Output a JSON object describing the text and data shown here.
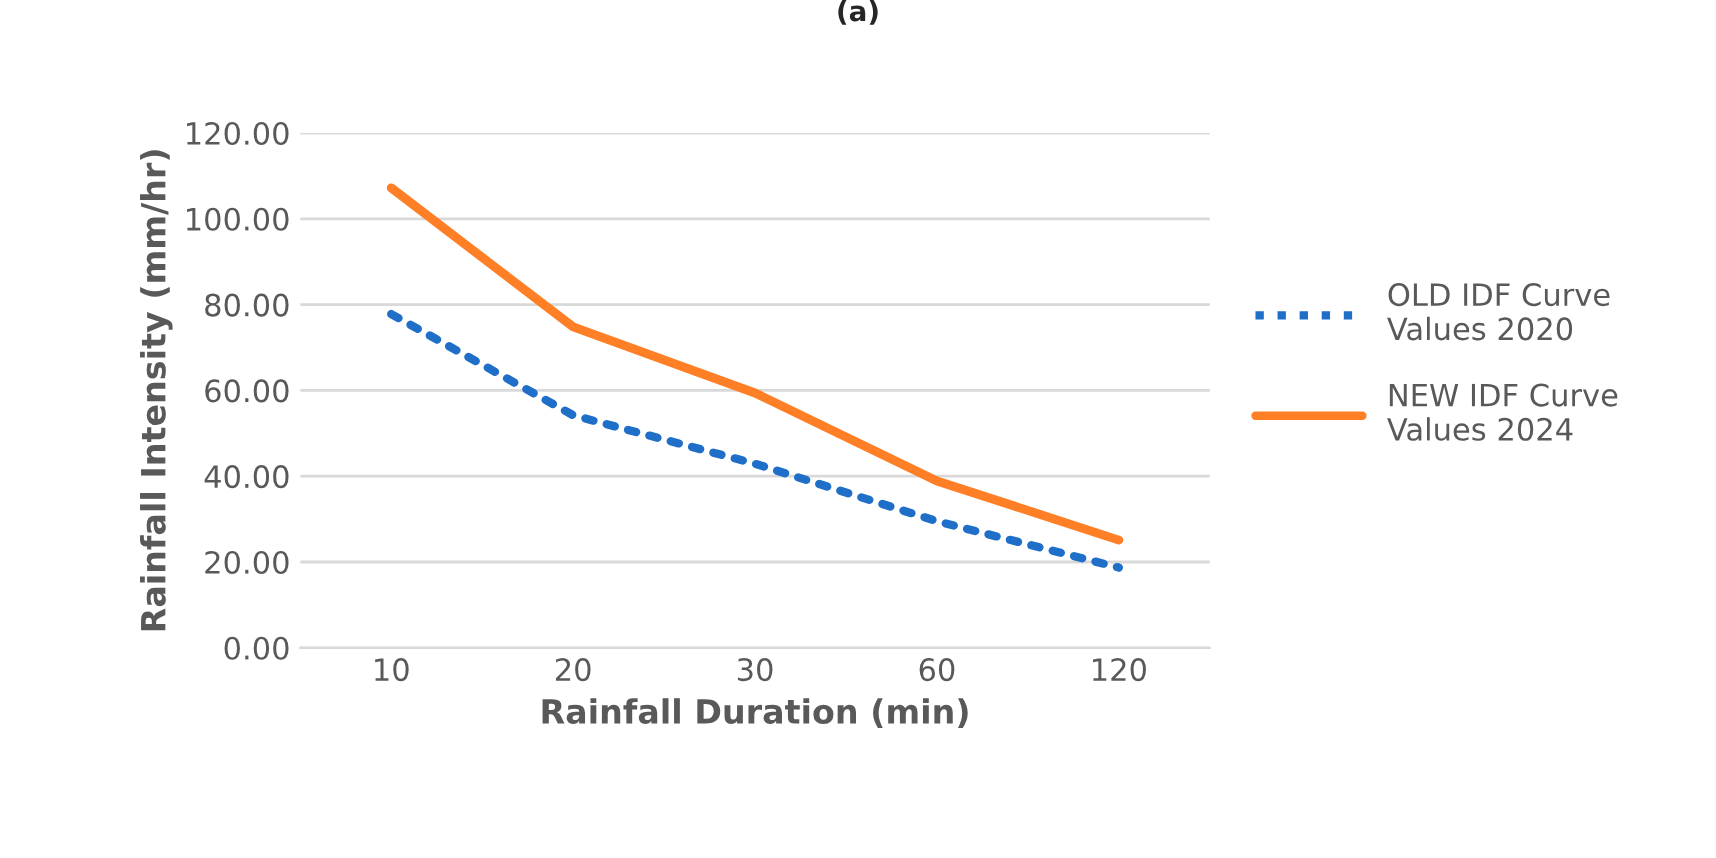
{
  "chart_data": {
    "type": "line",
    "title": "(a)",
    "xlabel": "Rainfall Duration (min)",
    "ylabel": "Rainfall Intensity (mm/hr)",
    "categories": [
      "10",
      "20",
      "30",
      "60",
      "120"
    ],
    "series": [
      {
        "name": "OLD IDF Curve\nValues 2020",
        "color": "#1f6fc9",
        "line_style": "dotted",
        "values": [
          77.8,
          54.2,
          42.9,
          29.5,
          18.7
        ]
      },
      {
        "name": "NEW IDF Curve\nValues 2024",
        "color": "#ff7f27",
        "line_style": "solid",
        "values": [
          107.2,
          74.8,
          59.4,
          38.9,
          25.1
        ]
      }
    ],
    "ylim": [
      0,
      120
    ],
    "yticks": [
      {
        "value": 0,
        "label": "0.00"
      },
      {
        "value": 20,
        "label": "20.00"
      },
      {
        "value": 40,
        "label": "40.00"
      },
      {
        "value": 60,
        "label": "60.00"
      },
      {
        "value": 80,
        "label": "80.00"
      },
      {
        "value": 100,
        "label": "100.00"
      },
      {
        "value": 120,
        "label": "120.00"
      }
    ],
    "grid": "y",
    "legend": "right",
    "marker": "none"
  }
}
